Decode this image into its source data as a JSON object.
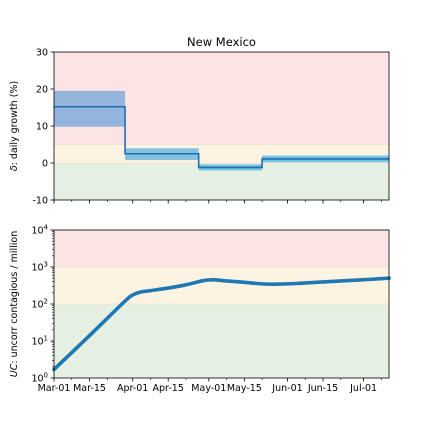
{
  "chart_data": [
    {
      "type": "step",
      "title": "New Mexico",
      "ylabel_symbol": "δ",
      "ylabel_text": ": daily growth (%)",
      "ylim": [
        -10,
        30
      ],
      "yticks": [
        -10,
        0,
        10,
        20,
        30
      ],
      "bands": [
        {
          "from": 5,
          "to": 30,
          "color": "#fde4e4"
        },
        {
          "from": 0,
          "to": 5,
          "color": "#fdf3e3"
        },
        {
          "from": -10,
          "to": 0,
          "color": "#e6f0e2"
        }
      ],
      "segments": [
        {
          "start": "2020-03-01",
          "end": "2020-03-29",
          "value": 15.2,
          "low": 9.8,
          "high": 19.5,
          "band_color": "#8fb1da"
        },
        {
          "start": "2020-03-29",
          "end": "2020-04-27",
          "value": 2.5,
          "low": 0.8,
          "high": 4.0,
          "band_color": "#7fbfde"
        },
        {
          "start": "2020-04-27",
          "end": "2020-05-22",
          "value": -1.2,
          "low": -2.0,
          "high": -0.4,
          "band_color": "#6cc0e2"
        },
        {
          "start": "2020-05-22",
          "end": "2020-07-11",
          "value": 1.1,
          "low": 0.2,
          "high": 2.0,
          "band_color": "#6cc0e2"
        }
      ],
      "line_color": "#1f6fb0"
    },
    {
      "type": "line",
      "ylabel_symbol": "UC",
      "ylabel_text": ": uncorr contagious / million",
      "yscale": "log",
      "ylim": [
        1,
        10000
      ],
      "yticks": [
        1,
        10,
        100,
        1000,
        10000
      ],
      "ytick_exponents": [
        "0",
        "1",
        "2",
        "3",
        "4"
      ],
      "bands": [
        {
          "from": 1000,
          "to": 10000,
          "color": "#fde4e4"
        },
        {
          "from": 100,
          "to": 1000,
          "color": "#fdf3e3"
        },
        {
          "from": 1,
          "to": 100,
          "color": "#e6f0e2"
        }
      ],
      "x": [
        "2020-03-01",
        "2020-03-15",
        "2020-03-29",
        "2020-04-01",
        "2020-04-04",
        "2020-04-08",
        "2020-04-15",
        "2020-04-22",
        "2020-04-29",
        "2020-05-03",
        "2020-05-08",
        "2020-05-15",
        "2020-05-22",
        "2020-05-29",
        "2020-06-05",
        "2020-06-15",
        "2020-06-25",
        "2020-07-05",
        "2020-07-11"
      ],
      "y": [
        1.7,
        14,
        120,
        175,
        210,
        230,
        270,
        330,
        430,
        450,
        420,
        385,
        350,
        345,
        360,
        395,
        430,
        470,
        500
      ],
      "line_color": "#1f77b4"
    }
  ],
  "x_axis": {
    "start": "2020-03-01",
    "end": "2020-07-11",
    "tick_dates": [
      "2020-03-01",
      "2020-03-15",
      "2020-04-01",
      "2020-04-15",
      "2020-05-01",
      "2020-05-15",
      "2020-06-01",
      "2020-06-15",
      "2020-07-01"
    ],
    "tick_labels": [
      "Mar-01",
      "Mar-15",
      "Apr-01",
      "Apr-15",
      "May-01",
      "May-15",
      "Jun-01",
      "Jun-15",
      "Jul-01"
    ],
    "minor_tick_dates": [
      "2020-03-08",
      "2020-03-22",
      "2020-04-08",
      "2020-04-22",
      "2020-05-08",
      "2020-05-22",
      "2020-06-08",
      "2020-06-22",
      "2020-07-08"
    ]
  }
}
